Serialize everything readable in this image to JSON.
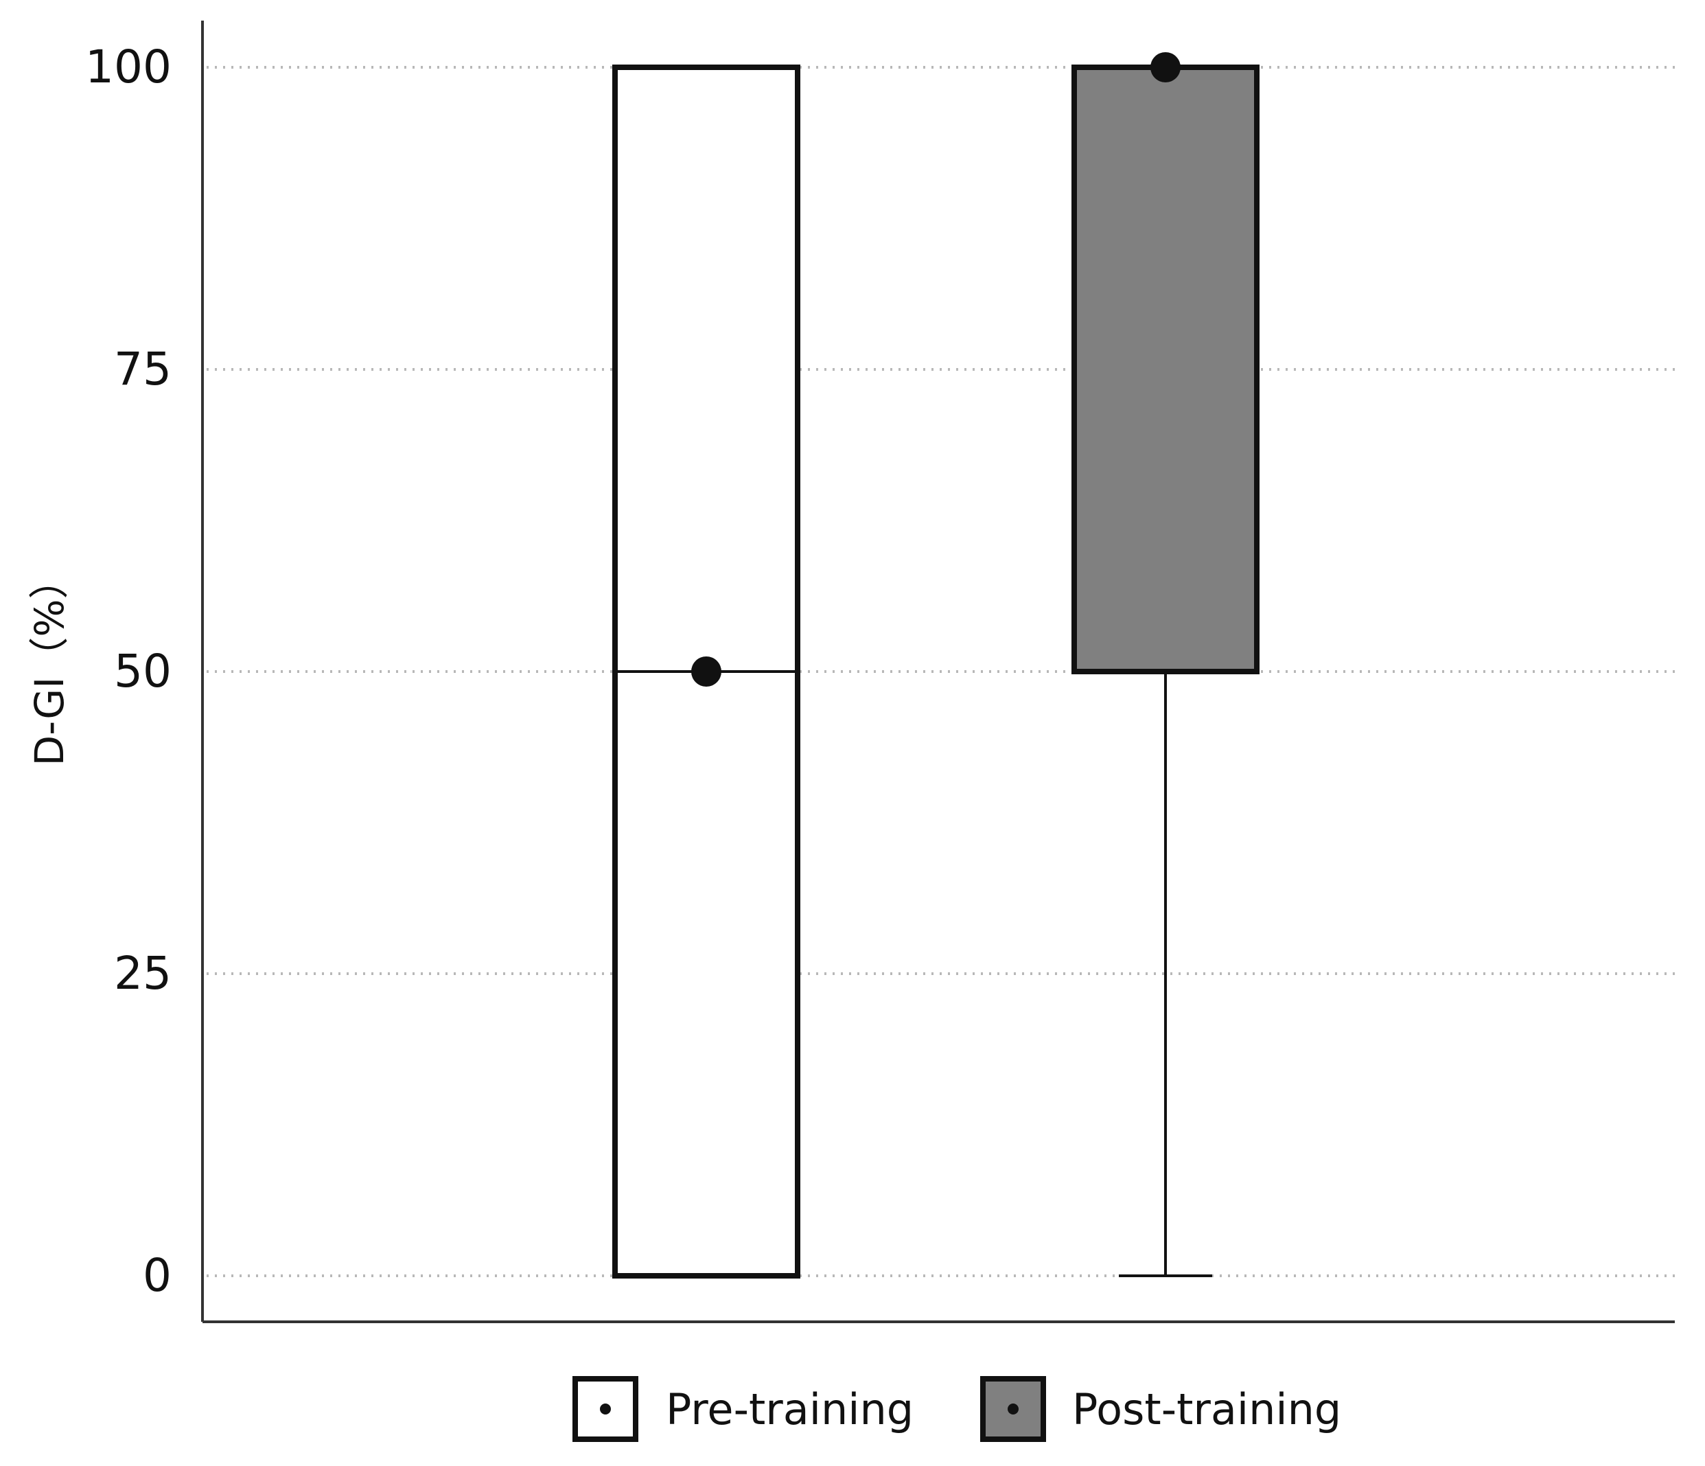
{
  "chart_data": {
    "type": "box",
    "title": "",
    "xlabel": "",
    "ylabel": "D-GI（%）",
    "ylim": [
      -4,
      104
    ],
    "yticks": [
      0,
      25,
      50,
      75,
      100
    ],
    "grid": true,
    "legend_position": "bottom",
    "series": [
      {
        "name": "Pre-training",
        "fill": "#ffffff",
        "min": 0,
        "q1": 0,
        "median": 50,
        "q3": 100,
        "max": 100,
        "mean": 50
      },
      {
        "name": "Post-training",
        "fill": "#808080",
        "min": 0,
        "q1": 50,
        "median": 100,
        "q3": 100,
        "max": 100,
        "mean": 100
      }
    ]
  }
}
